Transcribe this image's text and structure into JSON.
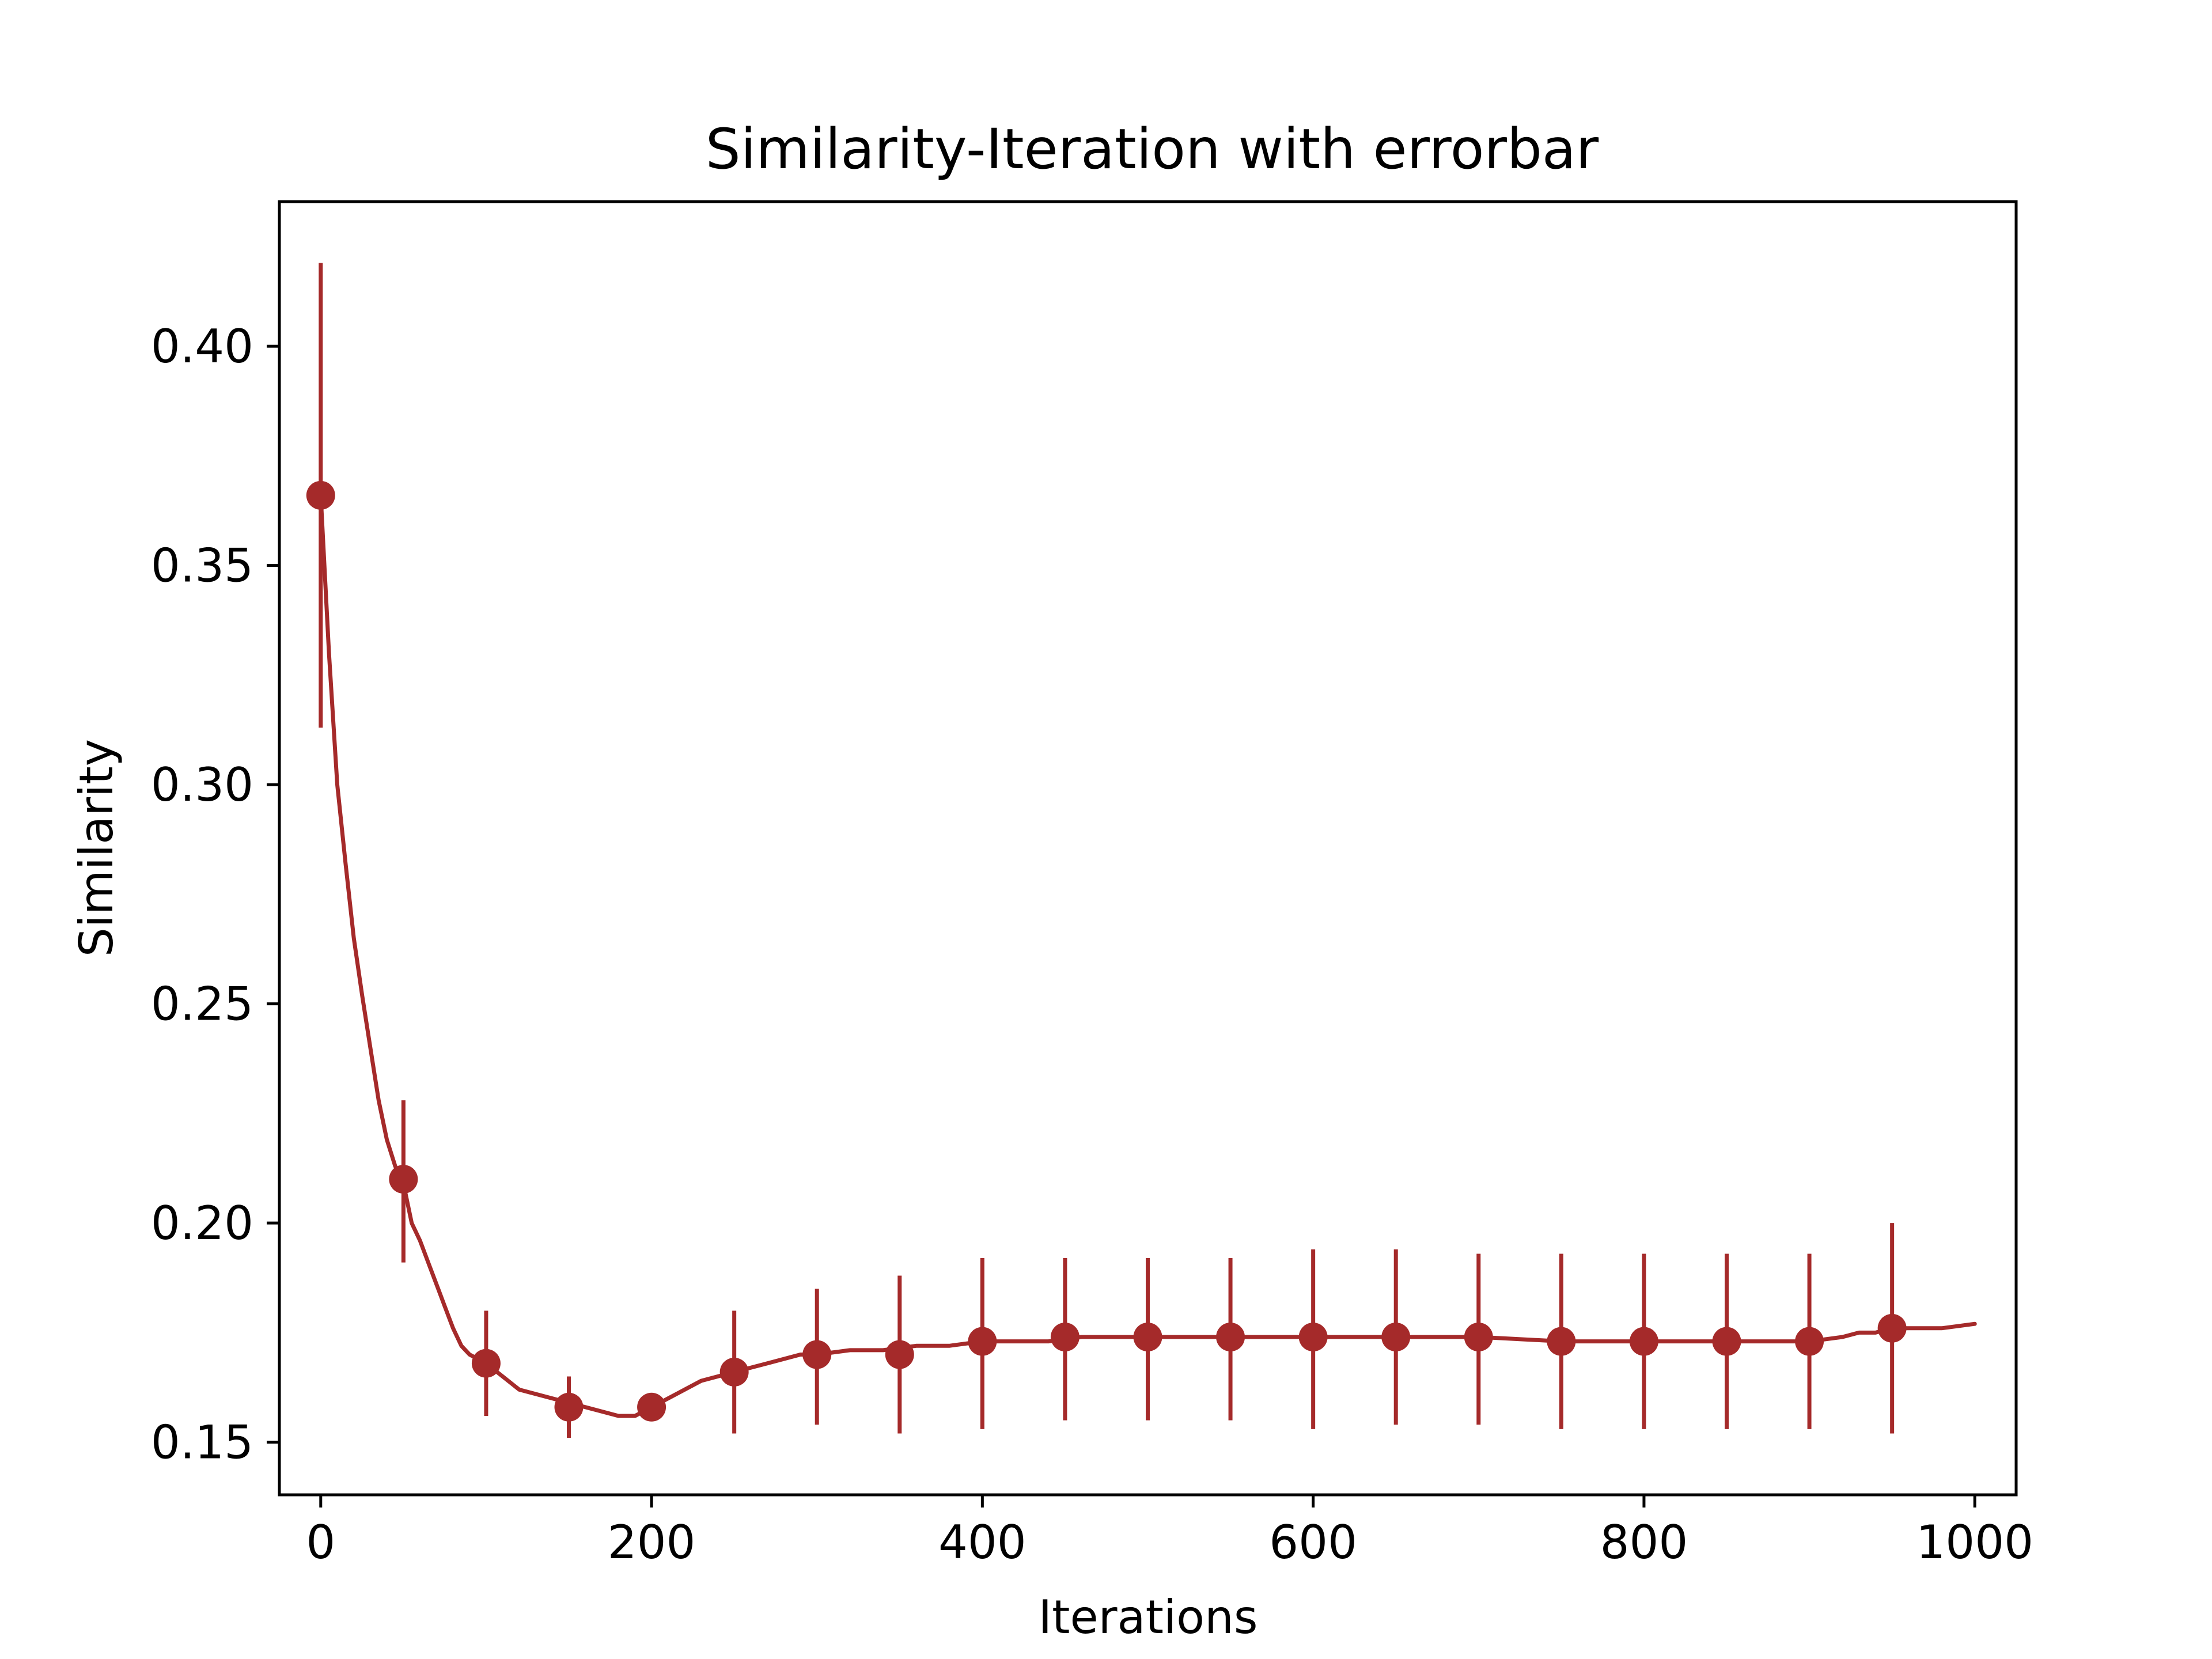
{
  "chart_data": {
    "type": "line",
    "title": "Similarity-Iteration with errorbar",
    "xlabel": "Iterations",
    "ylabel": "Similarity",
    "xlim": [
      -25,
      1025
    ],
    "ylim": [
      0.138,
      0.433
    ],
    "xticks": [
      "0",
      "200",
      "400",
      "600",
      "800",
      "1000"
    ],
    "yticks": [
      "0.15",
      "0.20",
      "0.25",
      "0.30",
      "0.35",
      "0.40"
    ],
    "grid": false,
    "color": "#a52a2a",
    "series": [
      {
        "x": [
          0,
          5,
          10,
          15,
          20,
          25,
          30,
          35,
          40,
          45,
          50,
          55,
          60,
          65,
          70,
          75,
          80,
          85,
          90,
          95,
          100,
          110,
          120,
          130,
          140,
          150,
          160,
          170,
          180,
          190,
          200,
          210,
          220,
          230,
          240,
          250,
          260,
          270,
          280,
          290,
          300,
          320,
          340,
          360,
          380,
          400,
          420,
          440,
          460,
          480,
          500,
          550,
          600,
          650,
          700,
          750,
          800,
          850,
          900,
          920,
          930,
          940,
          950,
          960,
          980,
          1000
        ],
        "y": [
          0.366,
          0.33,
          0.3,
          0.282,
          0.265,
          0.252,
          0.24,
          0.228,
          0.219,
          0.213,
          0.209,
          0.2,
          0.196,
          0.191,
          0.186,
          0.181,
          0.176,
          0.172,
          0.17,
          0.169,
          0.168,
          0.165,
          0.162,
          0.161,
          0.16,
          0.159,
          0.158,
          0.157,
          0.156,
          0.156,
          0.158,
          0.16,
          0.162,
          0.164,
          0.165,
          0.166,
          0.167,
          0.168,
          0.169,
          0.17,
          0.17,
          0.171,
          0.171,
          0.172,
          0.172,
          0.173,
          0.173,
          0.173,
          0.174,
          0.174,
          0.174,
          0.174,
          0.174,
          0.174,
          0.174,
          0.173,
          0.173,
          0.173,
          0.173,
          0.174,
          0.175,
          0.175,
          0.176,
          0.176,
          0.176,
          0.177
        ]
      }
    ],
    "errorbars": {
      "x": [
        0,
        50,
        100,
        150,
        200,
        250,
        300,
        350,
        400,
        450,
        500,
        550,
        600,
        650,
        700,
        750,
        800,
        850,
        900,
        950
      ],
      "y": [
        0.366,
        0.21,
        0.168,
        0.158,
        0.158,
        0.166,
        0.17,
        0.17,
        0.173,
        0.174,
        0.174,
        0.174,
        0.174,
        0.174,
        0.174,
        0.173,
        0.173,
        0.173,
        0.173,
        0.176
      ],
      "low": [
        0.313,
        0.191,
        0.156,
        0.151,
        0.156,
        0.152,
        0.154,
        0.152,
        0.153,
        0.155,
        0.155,
        0.155,
        0.153,
        0.154,
        0.154,
        0.153,
        0.153,
        0.153,
        0.153,
        0.152
      ],
      "high": [
        0.419,
        0.228,
        0.18,
        0.165,
        0.16,
        0.18,
        0.185,
        0.188,
        0.192,
        0.192,
        0.192,
        0.192,
        0.194,
        0.194,
        0.193,
        0.193,
        0.193,
        0.193,
        0.193,
        0.2
      ]
    }
  }
}
